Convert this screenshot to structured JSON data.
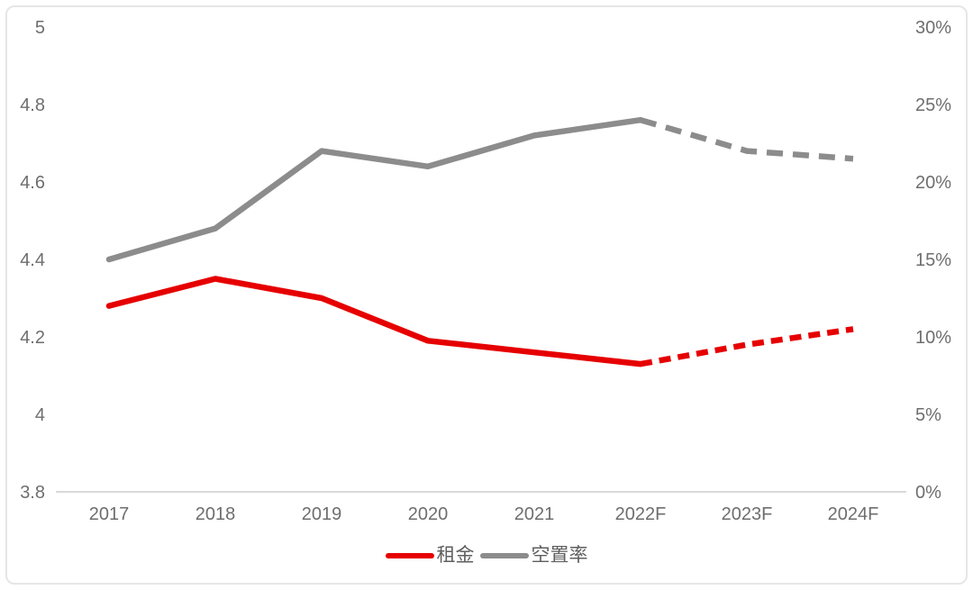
{
  "chart_data": {
    "type": "line",
    "title": "",
    "categories": [
      "2017",
      "2018",
      "2019",
      "2020",
      "2021",
      "2022F",
      "2023F",
      "2024F"
    ],
    "series": [
      {
        "name": "租金",
        "axis": "left",
        "color": "#e60000",
        "values": [
          4.28,
          4.35,
          4.3,
          4.19,
          4.16,
          4.13,
          4.18,
          4.22
        ],
        "solid_through_index": 5,
        "dash_pattern": "13 8"
      },
      {
        "name": "空置率",
        "axis": "right",
        "color": "#8c8c8c",
        "values": [
          15,
          17,
          22,
          21,
          23,
          24,
          22,
          21.5
        ],
        "solid_through_index": 5,
        "dash_pattern": "18 11"
      }
    ],
    "left_axis": {
      "min": 3.8,
      "max": 5,
      "tick_labels": [
        "5",
        "4.8",
        "4.6",
        "4.4",
        "4.2",
        "4",
        "3.8"
      ]
    },
    "right_axis": {
      "min": 0,
      "max": 30,
      "tick_labels": [
        "30%",
        "25%",
        "20%",
        "15%",
        "10%",
        "5%",
        "0%"
      ]
    },
    "legend_position": "bottom",
    "grid": false
  },
  "colors": {
    "axis_line": "#d9d9d9",
    "tick_label": "#6e6e6e",
    "frame_border": "#e6e6e6"
  }
}
